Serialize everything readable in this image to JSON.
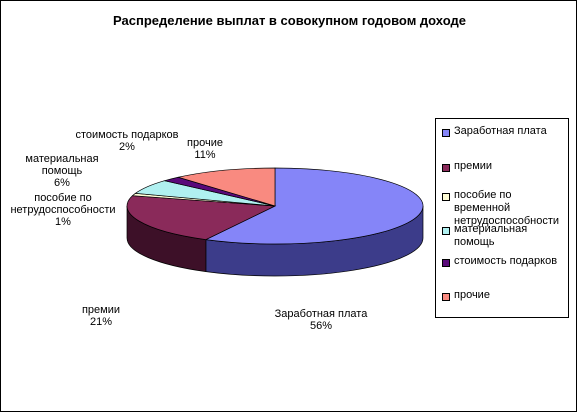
{
  "chart_data": {
    "type": "pie",
    "title": "Распределение выплат в совокупном годовом доходе",
    "three_d": true,
    "legend_position": "right",
    "slices": [
      {
        "name": "Заработная плата",
        "value": 56,
        "label": "56%",
        "color": "#8585f8",
        "side_color": "#3c3c8a"
      },
      {
        "name": "премии",
        "value": 21,
        "label": "21%",
        "color": "#8a2a5a",
        "side_color": "#3d1028"
      },
      {
        "name": "пособие по временной нетрудоспособности",
        "value": 1,
        "label": "1%",
        "color": "#fffdd6",
        "side_color": "#b3b190"
      },
      {
        "name": "материальная помощь",
        "value": 6,
        "label": "6%",
        "color": "#b0f0f0",
        "side_color": "#5f9494"
      },
      {
        "name": "стоимость подарков",
        "value": 2,
        "label": "2%",
        "color": "#5a0a7a",
        "side_color": "#2a0338"
      },
      {
        "name": "прочие",
        "value": 11,
        "label": "11%",
        "color": "#f98a80",
        "side_color": "#a3504a"
      }
    ],
    "slice_labels": [
      {
        "lines": [
          "Заработная плата",
          "56%"
        ]
      },
      {
        "lines": [
          "премии",
          "21%"
        ]
      },
      {
        "lines": [
          "пособие по",
          "нетрудоспособности",
          "1%"
        ]
      },
      {
        "lines": [
          "материальная",
          "помощь",
          "6%"
        ]
      },
      {
        "lines": [
          "стоимость подарков",
          "2%"
        ]
      },
      {
        "lines": [
          "прочие",
          "11%"
        ]
      }
    ],
    "legend": [
      {
        "lines": [
          "Заработная плата"
        ]
      },
      {
        "lines": [
          "премии"
        ]
      },
      {
        "lines": [
          "пособие по временной",
          "нетрудоспособности"
        ]
      },
      {
        "lines": [
          "материальная помощь"
        ]
      },
      {
        "lines": [
          "стоимость подарков"
        ]
      },
      {
        "lines": [
          "прочие"
        ]
      }
    ]
  }
}
